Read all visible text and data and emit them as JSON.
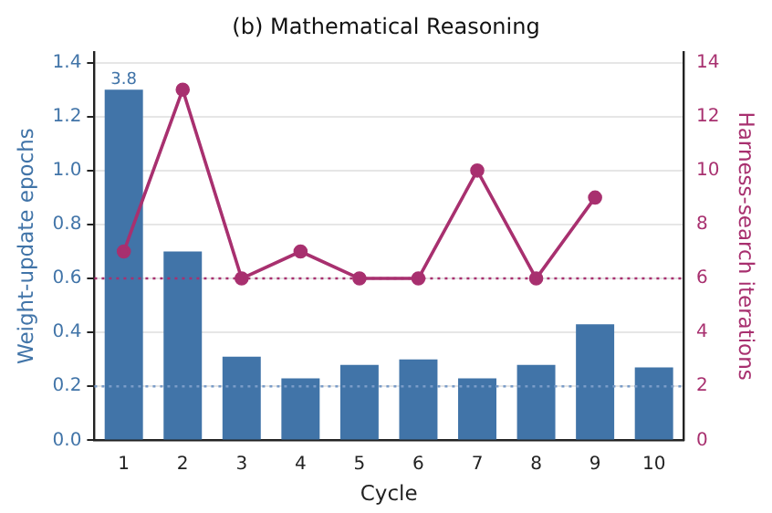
{
  "chart_data": {
    "type": "bar",
    "title": "(b) Mathematical Reasoning",
    "xlabel": "Cycle",
    "ylabel": "Weight-update epochs",
    "y2label": "Harness-search iterations",
    "categories": [
      "1",
      "2",
      "3",
      "4",
      "5",
      "6",
      "7",
      "8",
      "9",
      "10"
    ],
    "series": [
      {
        "color": "#4174a8",
        "values": [
          1.3,
          0.7,
          0.31,
          0.23,
          0.28,
          0.3,
          0.23,
          0.28,
          0.43,
          0.27
        ]
      },
      {
        "type": "line",
        "axis": "y2",
        "color": "#a8306f",
        "values": [
          7,
          13,
          6,
          7,
          6,
          6,
          10,
          6,
          9,
          null
        ]
      }
    ],
    "ylim": [
      0,
      1.44
    ],
    "yticks": [
      {
        "value": 0,
        "label": "0.0"
      },
      0.2,
      0.4,
      0.6,
      0.8,
      {
        "value": 1,
        "label": "1.0"
      },
      1.2,
      1.4
    ],
    "y2lim": [
      0,
      14.4
    ],
    "y2ticks": [
      0,
      2,
      4,
      6,
      8,
      10,
      12,
      14
    ],
    "ref_lines": [
      {
        "axis": "y",
        "value": 0.2,
        "color": "#7a9cc8",
        "line_style": "dotted"
      },
      {
        "axis": "y2",
        "value": 6,
        "color": "#a8306f",
        "line_style": "dotted"
      }
    ],
    "annotations": [
      {
        "text": "3.8",
        "x": "1",
        "y": 1.3
      }
    ],
    "grid": "y",
    "legend": false,
    "marker": "circle",
    "line_style": "solid"
  }
}
